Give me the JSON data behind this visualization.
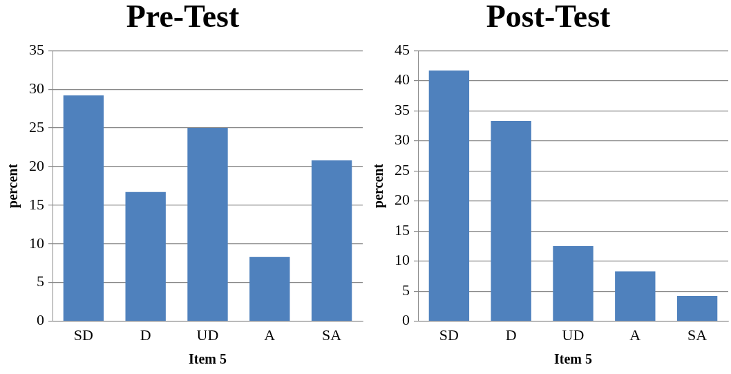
{
  "chart_data": [
    {
      "type": "bar",
      "title": "Pre-Test",
      "xlabel": "Item 5",
      "ylabel": "percent",
      "categories": [
        "SD",
        "D",
        "UD",
        "A",
        "SA"
      ],
      "series": [
        {
          "color": "#4f81bd",
          "values": [
            29.2,
            16.7,
            25,
            8.3,
            20.8
          ]
        }
      ],
      "ylim": [
        0,
        35
      ],
      "yticks": [
        0,
        5,
        10,
        15,
        20,
        25,
        30,
        35
      ],
      "grid": "y",
      "legend": false
    },
    {
      "type": "bar",
      "title": "Post-Test",
      "xlabel": "Item 5",
      "ylabel": "percent",
      "categories": [
        "SD",
        "D",
        "UD",
        "A",
        "SA"
      ],
      "series": [
        {
          "color": "#4f81bd",
          "values": [
            41.7,
            33.3,
            12.5,
            8.3,
            4.2
          ]
        }
      ],
      "ylim": [
        0,
        45
      ],
      "yticks": [
        0,
        5,
        10,
        15,
        20,
        25,
        30,
        35,
        40,
        45
      ],
      "grid": "y",
      "legend": false
    }
  ]
}
